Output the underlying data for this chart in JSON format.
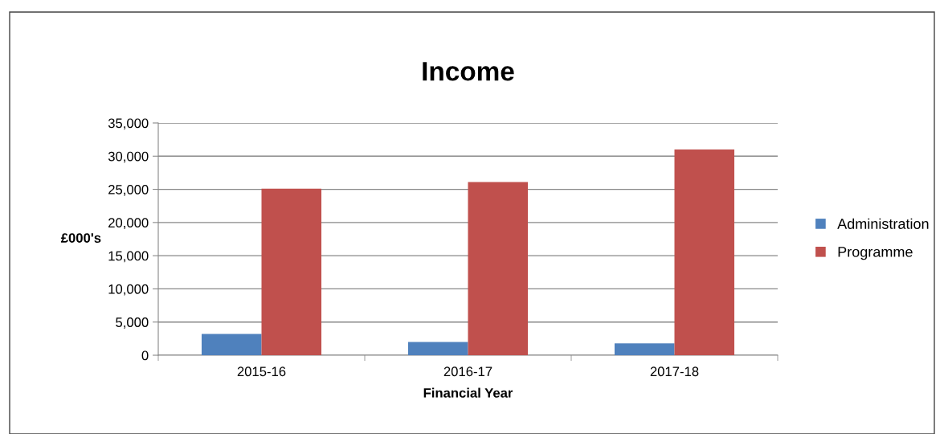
{
  "chart_data": {
    "type": "bar",
    "title": "Income",
    "xlabel": "Financial Year",
    "ylabel": "£000's",
    "categories": [
      "2015-16",
      "2016-17",
      "2017-18"
    ],
    "series": [
      {
        "name": "Administration",
        "color": "#4f81bd",
        "values": [
          3200,
          2000,
          1800
        ]
      },
      {
        "name": "Programme",
        "color": "#c0504d",
        "values": [
          25100,
          26100,
          31000
        ]
      }
    ],
    "ylim": [
      0,
      35000
    ],
    "yticks": [
      {
        "value": 0,
        "label": "0"
      },
      {
        "value": 5000,
        "label": "5,000"
      },
      {
        "value": 10000,
        "label": "10,000"
      },
      {
        "value": 15000,
        "label": "15,000"
      },
      {
        "value": 20000,
        "label": "20,000"
      },
      {
        "value": 25000,
        "label": "25,000"
      },
      {
        "value": 30000,
        "label": "30,000"
      },
      {
        "value": 35000,
        "label": "35,000"
      }
    ],
    "grid": "y",
    "legend": "right"
  }
}
